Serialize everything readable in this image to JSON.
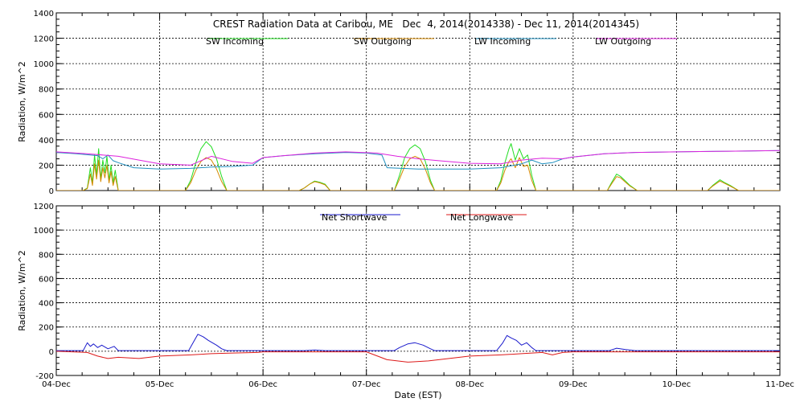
{
  "colors": {
    "sw_incoming": "#22dd22",
    "sw_outgoing": "#d48a00",
    "lw_incoming": "#1f8fbf",
    "lw_outgoing": "#dd22dd",
    "net_shortwave": "#1a1acc",
    "net_longwave": "#dd1a1a"
  },
  "chart_data": [
    {
      "type": "line",
      "title": "CREST Radiation Data at Caribou, ME   Dec  4, 2014(2014338) - Dec 11, 2014(2014345)",
      "xlabel": "",
      "ylabel": "Radiation, W/m^2",
      "xlim": [
        "04-Dec",
        "11-Dec"
      ],
      "ylim": [
        0,
        1400
      ],
      "yticks": [
        0,
        200,
        400,
        600,
        800,
        1000,
        1200,
        1400
      ],
      "grid": true,
      "legend_position": "top",
      "series": [
        {
          "name": "SW Incoming",
          "color_key": "sw_incoming",
          "points": [
            [
              0.0,
              0
            ],
            [
              0.26,
              0
            ],
            [
              0.3,
              20
            ],
            [
              0.33,
              180
            ],
            [
              0.35,
              60
            ],
            [
              0.37,
              280
            ],
            [
              0.39,
              120
            ],
            [
              0.41,
              330
            ],
            [
              0.43,
              90
            ],
            [
              0.45,
              240
            ],
            [
              0.47,
              140
            ],
            [
              0.49,
              270
            ],
            [
              0.51,
              80
            ],
            [
              0.53,
              200
            ],
            [
              0.55,
              60
            ],
            [
              0.57,
              160
            ],
            [
              0.6,
              0
            ],
            [
              1.25,
              0
            ],
            [
              1.3,
              80
            ],
            [
              1.35,
              220
            ],
            [
              1.4,
              330
            ],
            [
              1.45,
              385
            ],
            [
              1.5,
              345
            ],
            [
              1.55,
              250
            ],
            [
              1.6,
              110
            ],
            [
              1.65,
              0
            ],
            [
              2.35,
              0
            ],
            [
              2.4,
              20
            ],
            [
              2.45,
              50
            ],
            [
              2.5,
              75
            ],
            [
              2.55,
              65
            ],
            [
              2.6,
              50
            ],
            [
              2.65,
              0
            ],
            [
              3.27,
              0
            ],
            [
              3.32,
              120
            ],
            [
              3.37,
              260
            ],
            [
              3.42,
              330
            ],
            [
              3.47,
              360
            ],
            [
              3.52,
              330
            ],
            [
              3.57,
              230
            ],
            [
              3.62,
              80
            ],
            [
              3.66,
              0
            ],
            [
              4.26,
              0
            ],
            [
              4.3,
              80
            ],
            [
              4.34,
              220
            ],
            [
              4.38,
              330
            ],
            [
              4.4,
              370
            ],
            [
              4.44,
              240
            ],
            [
              4.48,
              330
            ],
            [
              4.52,
              250
            ],
            [
              4.56,
              280
            ],
            [
              4.6,
              120
            ],
            [
              4.64,
              0
            ],
            [
              5.33,
              0
            ],
            [
              5.37,
              60
            ],
            [
              5.42,
              130
            ],
            [
              5.46,
              110
            ],
            [
              5.5,
              80
            ],
            [
              5.55,
              40
            ],
            [
              5.62,
              0
            ],
            [
              6.3,
              0
            ],
            [
              6.35,
              40
            ],
            [
              6.42,
              85
            ],
            [
              6.47,
              60
            ],
            [
              6.52,
              40
            ],
            [
              6.6,
              0
            ],
            [
              7.0,
              0
            ]
          ]
        },
        {
          "name": "SW Outgoing",
          "color_key": "sw_outgoing",
          "points": [
            [
              0.0,
              0
            ],
            [
              0.26,
              0
            ],
            [
              0.3,
              15
            ],
            [
              0.33,
              130
            ],
            [
              0.35,
              40
            ],
            [
              0.37,
              210
            ],
            [
              0.39,
              90
            ],
            [
              0.41,
              240
            ],
            [
              0.43,
              70
            ],
            [
              0.45,
              180
            ],
            [
              0.47,
              100
            ],
            [
              0.49,
              200
            ],
            [
              0.51,
              60
            ],
            [
              0.53,
              150
            ],
            [
              0.55,
              40
            ],
            [
              0.57,
              110
            ],
            [
              0.6,
              0
            ],
            [
              1.25,
              0
            ],
            [
              1.3,
              60
            ],
            [
              1.35,
              160
            ],
            [
              1.4,
              230
            ],
            [
              1.45,
              260
            ],
            [
              1.5,
              240
            ],
            [
              1.55,
              170
            ],
            [
              1.6,
              70
            ],
            [
              1.65,
              0
            ],
            [
              2.35,
              0
            ],
            [
              2.4,
              20
            ],
            [
              2.45,
              50
            ],
            [
              2.5,
              70
            ],
            [
              2.55,
              60
            ],
            [
              2.6,
              45
            ],
            [
              2.65,
              0
            ],
            [
              3.27,
              0
            ],
            [
              3.32,
              90
            ],
            [
              3.37,
              190
            ],
            [
              3.42,
              250
            ],
            [
              3.47,
              270
            ],
            [
              3.52,
              250
            ],
            [
              3.57,
              170
            ],
            [
              3.62,
              60
            ],
            [
              3.66,
              0
            ],
            [
              4.26,
              0
            ],
            [
              4.3,
              60
            ],
            [
              4.34,
              160
            ],
            [
              4.38,
              230
            ],
            [
              4.4,
              250
            ],
            [
              4.44,
              180
            ],
            [
              4.48,
              260
            ],
            [
              4.52,
              190
            ],
            [
              4.56,
              200
            ],
            [
              4.6,
              80
            ],
            [
              4.64,
              0
            ],
            [
              5.33,
              0
            ],
            [
              5.37,
              50
            ],
            [
              5.42,
              110
            ],
            [
              5.46,
              100
            ],
            [
              5.5,
              70
            ],
            [
              5.55,
              35
            ],
            [
              5.62,
              0
            ],
            [
              6.3,
              0
            ],
            [
              6.35,
              35
            ],
            [
              6.42,
              75
            ],
            [
              6.47,
              55
            ],
            [
              6.52,
              35
            ],
            [
              6.6,
              0
            ],
            [
              7.0,
              0
            ]
          ]
        },
        {
          "name": "LW Incoming",
          "color_key": "lw_incoming",
          "points": [
            [
              0.0,
              300
            ],
            [
              0.2,
              290
            ],
            [
              0.4,
              275
            ],
            [
              0.45,
              250
            ],
            [
              0.5,
              280
            ],
            [
              0.55,
              235
            ],
            [
              0.6,
              220
            ],
            [
              0.75,
              180
            ],
            [
              1.0,
              170
            ],
            [
              1.3,
              175
            ],
            [
              1.5,
              185
            ],
            [
              1.7,
              190
            ],
            [
              1.9,
              200
            ],
            [
              2.0,
              260
            ],
            [
              2.2,
              275
            ],
            [
              2.5,
              290
            ],
            [
              2.8,
              300
            ],
            [
              3.0,
              295
            ],
            [
              3.15,
              280
            ],
            [
              3.2,
              180
            ],
            [
              3.5,
              170
            ],
            [
              4.0,
              170
            ],
            [
              4.3,
              180
            ],
            [
              4.5,
              210
            ],
            [
              4.6,
              240
            ],
            [
              4.7,
              210
            ],
            [
              4.8,
              220
            ],
            [
              4.9,
              250
            ],
            [
              5.0,
              265
            ],
            [
              5.3,
              290
            ],
            [
              5.6,
              300
            ],
            [
              6.0,
              305
            ],
            [
              6.5,
              310
            ],
            [
              7.0,
              315
            ]
          ]
        },
        {
          "name": "LW Outgoing",
          "color_key": "lw_outgoing",
          "points": [
            [
              0.0,
              305
            ],
            [
              0.3,
              290
            ],
            [
              0.6,
              270
            ],
            [
              0.8,
              240
            ],
            [
              1.0,
              210
            ],
            [
              1.3,
              200
            ],
            [
              1.5,
              270
            ],
            [
              1.7,
              230
            ],
            [
              1.9,
              215
            ],
            [
              2.0,
              260
            ],
            [
              2.2,
              275
            ],
            [
              2.5,
              295
            ],
            [
              2.8,
              305
            ],
            [
              3.1,
              295
            ],
            [
              3.3,
              270
            ],
            [
              3.5,
              250
            ],
            [
              3.7,
              235
            ],
            [
              4.0,
              215
            ],
            [
              4.3,
              210
            ],
            [
              4.5,
              240
            ],
            [
              4.7,
              255
            ],
            [
              4.9,
              250
            ],
            [
              5.0,
              265
            ],
            [
              5.3,
              290
            ],
            [
              5.6,
              300
            ],
            [
              6.0,
              305
            ],
            [
              6.5,
              310
            ],
            [
              7.0,
              315
            ]
          ]
        }
      ]
    },
    {
      "type": "line",
      "title": "",
      "xlabel": "Date (EST)",
      "ylabel": "Radiation, W/m^2",
      "xlim": [
        "04-Dec",
        "11-Dec"
      ],
      "ylim": [
        -200,
        1200
      ],
      "yticks": [
        -200,
        0,
        200,
        400,
        600,
        800,
        1000,
        1200
      ],
      "xticks": [
        "04-Dec",
        "05-Dec",
        "06-Dec",
        "07-Dec",
        "08-Dec",
        "09-Dec",
        "10-Dec",
        "11-Dec"
      ],
      "grid": true,
      "legend_position": "top",
      "series": [
        {
          "name": "Net Shortwave",
          "color_key": "net_shortwave",
          "points": [
            [
              0.0,
              5
            ],
            [
              0.26,
              5
            ],
            [
              0.3,
              70
            ],
            [
              0.33,
              40
            ],
            [
              0.36,
              60
            ],
            [
              0.4,
              30
            ],
            [
              0.44,
              50
            ],
            [
              0.5,
              20
            ],
            [
              0.56,
              40
            ],
            [
              0.6,
              5
            ],
            [
              1.28,
              5
            ],
            [
              1.33,
              80
            ],
            [
              1.37,
              140
            ],
            [
              1.42,
              120
            ],
            [
              1.47,
              90
            ],
            [
              1.55,
              50
            ],
            [
              1.6,
              20
            ],
            [
              1.65,
              5
            ],
            [
              2.4,
              5
            ],
            [
              2.5,
              10
            ],
            [
              2.6,
              5
            ],
            [
              3.27,
              5
            ],
            [
              3.32,
              30
            ],
            [
              3.4,
              60
            ],
            [
              3.47,
              70
            ],
            [
              3.55,
              50
            ],
            [
              3.62,
              20
            ],
            [
              3.66,
              5
            ],
            [
              4.26,
              5
            ],
            [
              4.32,
              70
            ],
            [
              4.36,
              130
            ],
            [
              4.4,
              110
            ],
            [
              4.45,
              90
            ],
            [
              4.5,
              50
            ],
            [
              4.55,
              70
            ],
            [
              4.6,
              30
            ],
            [
              4.64,
              5
            ],
            [
              5.35,
              5
            ],
            [
              5.42,
              25
            ],
            [
              5.5,
              15
            ],
            [
              5.6,
              5
            ],
            [
              7.0,
              5
            ]
          ]
        },
        {
          "name": "Net Longwave",
          "color_key": "net_longwave",
          "points": [
            [
              0.0,
              0
            ],
            [
              0.3,
              -10
            ],
            [
              0.4,
              -40
            ],
            [
              0.5,
              -60
            ],
            [
              0.6,
              -50
            ],
            [
              0.8,
              -60
            ],
            [
              1.0,
              -40
            ],
            [
              1.3,
              -30
            ],
            [
              1.5,
              -20
            ],
            [
              1.7,
              -15
            ],
            [
              1.95,
              -10
            ],
            [
              2.0,
              -5
            ],
            [
              2.5,
              -5
            ],
            [
              3.0,
              -5
            ],
            [
              3.2,
              -70
            ],
            [
              3.4,
              -90
            ],
            [
              3.6,
              -80
            ],
            [
              3.8,
              -60
            ],
            [
              4.0,
              -40
            ],
            [
              4.3,
              -30
            ],
            [
              4.5,
              -20
            ],
            [
              4.7,
              -10
            ],
            [
              4.8,
              -30
            ],
            [
              4.9,
              -10
            ],
            [
              5.0,
              -5
            ],
            [
              5.5,
              -5
            ],
            [
              6.0,
              -5
            ],
            [
              6.5,
              -5
            ],
            [
              7.0,
              -5
            ]
          ]
        }
      ]
    }
  ]
}
